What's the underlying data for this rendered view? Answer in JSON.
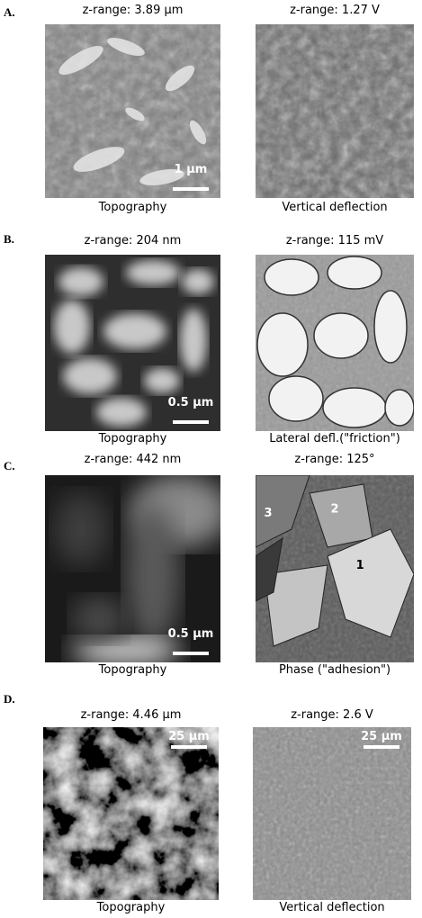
{
  "panels": [
    {
      "letter": "A.",
      "images": [
        {
          "z_range": "z-range: 3.89 µm",
          "caption": "Topography",
          "scale_bar": "1 µm"
        },
        {
          "z_range": "z-range: 1.27 V",
          "caption": "Vertical deflection"
        }
      ]
    },
    {
      "letter": "B.",
      "images": [
        {
          "z_range": "z-range: 204 nm",
          "caption": "Topography",
          "scale_bar": "0.5 µm"
        },
        {
          "z_range": "z-range: 115 mV",
          "caption": "Lateral defl.(\"friction\")"
        }
      ]
    },
    {
      "letter": "C.",
      "images": [
        {
          "z_range": "z-range: 442 nm",
          "caption": "Topography",
          "scale_bar": "0.5 µm"
        },
        {
          "z_range": "z-range: 125°",
          "caption": "Phase (\"adhesion\")",
          "annotations": [
            "3",
            "2",
            "1"
          ]
        }
      ]
    },
    {
      "letter": "D.",
      "images": [
        {
          "z_range": "z-range: 4.46 µm",
          "caption": "Topography",
          "scale_bar": "25 µm"
        },
        {
          "z_range": "z-range: 2.6 V",
          "caption": "Vertical deflection",
          "scale_bar": "25 µm"
        }
      ]
    }
  ]
}
